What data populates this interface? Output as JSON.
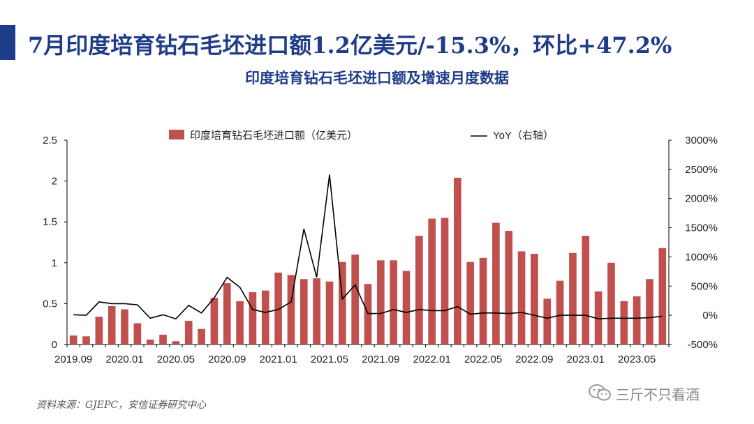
{
  "header": {
    "title": "7月印度培育钻石毛坯进口额1.2亿美元/-15.3%，环比+47.2%",
    "subtitle": "印度培育钻石毛坯进口额及增速月度数据"
  },
  "footer": {
    "source": "资料来源：GJEPC，安信证券研究中心",
    "watermark": "三斤不只看酒"
  },
  "colors": {
    "bar": "#c0504d",
    "line": "#000000",
    "title": "#1f3c88"
  },
  "chart_data": {
    "type": "bar",
    "title": "",
    "legend_placement": "top",
    "series": [
      {
        "name": "印度培育钻石毛坯进口额（亿美元）",
        "type": "bar",
        "axis": "left",
        "values": [
          0.11,
          0.1,
          0.34,
          0.47,
          0.43,
          0.26,
          0.06,
          0.12,
          0.04,
          0.29,
          0.19,
          0.57,
          0.75,
          0.53,
          0.64,
          0.66,
          0.88,
          0.85,
          0.8,
          0.81,
          0.77,
          1.01,
          1.1,
          0.74,
          1.03,
          1.03,
          0.9,
          1.33,
          1.54,
          1.55,
          2.04,
          1.01,
          1.06,
          1.49,
          1.39,
          1.14,
          1.11,
          0.56,
          0.78,
          1.12,
          1.33,
          0.65,
          1.0,
          0.53,
          0.59,
          0.8,
          1.18
        ]
      },
      {
        "name": "YoY（右轴）",
        "type": "line",
        "axis": "right",
        "values": [
          10,
          0,
          230,
          200,
          200,
          180,
          -50,
          10,
          -60,
          170,
          40,
          300,
          650,
          480,
          100,
          50,
          100,
          230,
          1480,
          650,
          2410,
          280,
          520,
          30,
          30,
          100,
          50,
          100,
          80,
          80,
          150,
          20,
          40,
          40,
          30,
          50,
          0,
          -50,
          0,
          0,
          0,
          -60,
          -50,
          -50,
          -50,
          -40,
          -15.3
        ]
      }
    ],
    "x_tick_labels": [
      "2019.09",
      "2020.01",
      "2020.05",
      "2020.09",
      "2021.01",
      "2021.05",
      "2021.09",
      "2022.01",
      "2022.05",
      "2022.09",
      "2023.01",
      "2023.05"
    ],
    "x_tick_every": 4,
    "y_left": {
      "min": 0,
      "max": 2.5,
      "ticks": [
        "0",
        "0.5",
        "1",
        "1.5",
        "2",
        "2.5"
      ]
    },
    "y_right": {
      "min": -500,
      "max": 3000,
      "ticks": [
        "-500%",
        "0%",
        "500%",
        "1000%",
        "1500%",
        "2000%",
        "2500%",
        "3000%"
      ]
    }
  }
}
